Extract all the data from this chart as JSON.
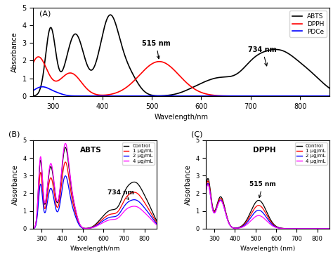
{
  "panel_A_label": "(A)",
  "panel_B_label": "(B)",
  "panel_C_label": "(C)",
  "xlabel_A": "Wavelength/nm",
  "xlabel_B": "Wavelength/nm",
  "xlabel_C": "Wavelength (nm)",
  "ylabel": "Absorbance",
  "xlim": [
    260,
    860
  ],
  "ylim_A": [
    0,
    5
  ],
  "ylim_BC": [
    0,
    5
  ],
  "yticks_A": [
    0,
    1,
    2,
    3,
    4,
    5
  ],
  "yticks_BC": [
    0,
    1,
    2,
    3,
    4,
    5
  ],
  "xticks_A": [
    300,
    400,
    500,
    600,
    700,
    800
  ],
  "xticks_B": [
    300,
    400,
    500,
    600,
    700,
    800
  ],
  "xticks_C": [
    300,
    400,
    500,
    600,
    700,
    800
  ],
  "legend_A": [
    "ABTS",
    "DPPH",
    "PDCe"
  ],
  "legend_A_colors": [
    "black",
    "red",
    "blue"
  ],
  "legend_BC": [
    "Control",
    "1 μg/mL",
    "2 μg/mL",
    "4 μg/mL"
  ],
  "legend_BC_colors": [
    "black",
    "red",
    "blue",
    "magenta"
  ],
  "annot_A_515": "515 nm",
  "annot_A_734": "734 nm",
  "annot_B_734": "734 nm",
  "annot_C_515": "515 nm",
  "label_B": "ABTS",
  "label_C": "DPPH",
  "background_color": "white"
}
